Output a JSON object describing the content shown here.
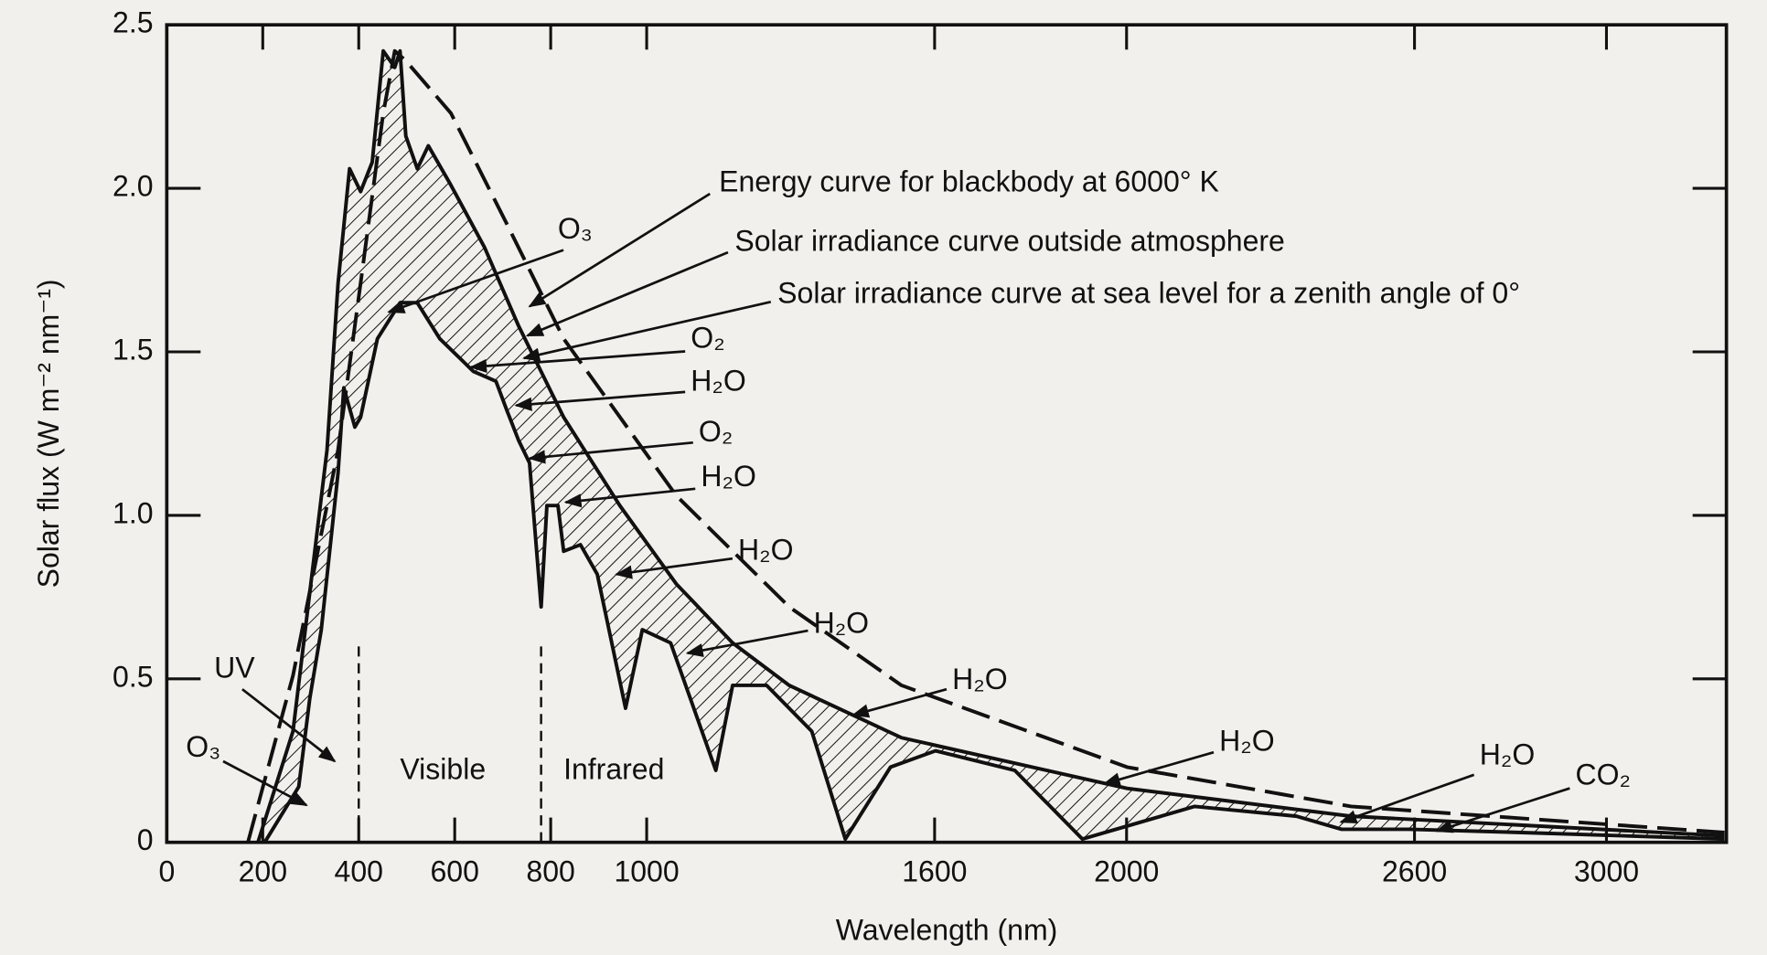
{
  "chart_data": {
    "type": "line",
    "x_label": "Wavelength (nm)",
    "y_label": "Solar flux (W m⁻² nm⁻¹)",
    "xlim": [
      0,
      3250
    ],
    "ylim": [
      0,
      2.5
    ],
    "xticks": [
      0,
      200,
      400,
      600,
      800,
      1000,
      1600,
      2000,
      2600,
      3000
    ],
    "yticks": [
      0,
      0.5,
      {
        "value": 1,
        "label": "1.0"
      },
      1.5,
      {
        "value": 2,
        "label": "2.0"
      },
      2.5
    ],
    "region_bounds": [
      400,
      780
    ],
    "series": [
      {
        "name": "Energy curve for blackbody at 6000° K",
        "color": "#111111",
        "dashed": true,
        "x": [
          169,
          263,
          357,
          404,
          451,
          475,
          498,
          592,
          709,
          827,
          1062,
          1297,
          1531,
          2001,
          2468,
          3246
        ],
        "values": [
          0,
          0.51,
          1.2,
          1.71,
          2.23,
          2.42,
          2.39,
          2.23,
          1.89,
          1.54,
          1.06,
          0.72,
          0.48,
          0.23,
          0.11,
          0.03
        ]
      },
      {
        "name": "Solar irradiance curve outside atmosphere",
        "color": "#111111",
        "dashed": false,
        "x": [
          190,
          263,
          334,
          357,
          381,
          404,
          428,
          451,
          475,
          486,
          498,
          522,
          545,
          592,
          662,
          733,
          827,
          944,
          1062,
          1179,
          1297,
          1531,
          2001,
          2468,
          3246
        ],
        "values": [
          0,
          0.34,
          1.2,
          1.71,
          2.06,
          1.99,
          2.08,
          2.42,
          2.37,
          2.42,
          2.16,
          2.06,
          2.13,
          2.01,
          1.82,
          1.58,
          1.3,
          1.03,
          0.79,
          0.61,
          0.48,
          0.32,
          0.165,
          0.08,
          0.02
        ]
      },
      {
        "name": "Solar irradiance curve at sea level for a zenith angle of 0°",
        "color": "#111111",
        "dashed": false,
        "x": [
          204,
          275,
          298,
          322,
          357,
          369,
          392,
          404,
          439,
          486,
          522,
          569,
          639,
          686,
          709,
          733,
          756,
          780,
          792,
          815,
          827,
          862,
          897,
          956,
          991,
          1050,
          1144,
          1179,
          1250,
          1344,
          1414,
          1508,
          1602,
          1767,
          1908,
          1978,
          2142,
          2354,
          2448,
          2589,
          2824,
          3246
        ],
        "values": [
          0,
          0.17,
          0.44,
          0.65,
          1.13,
          1.39,
          1.27,
          1.3,
          1.54,
          1.65,
          1.65,
          1.54,
          1.44,
          1.41,
          1.32,
          1.23,
          1.16,
          0.72,
          1.03,
          1.03,
          0.89,
          0.91,
          0.82,
          0.41,
          0.65,
          0.61,
          0.22,
          0.48,
          0.48,
          0.34,
          0.01,
          0.23,
          0.28,
          0.22,
          0.01,
          0.04,
          0.11,
          0.08,
          0.04,
          0.04,
          0.03,
          0.01
        ]
      }
    ],
    "annotations": [
      {
        "text": "O₃"
      },
      {
        "text": "O₂"
      },
      {
        "text": "H₂O"
      },
      {
        "text": "O₂"
      },
      {
        "text": "H₂O"
      },
      {
        "text": "H₂O"
      },
      {
        "text": "H₂O"
      },
      {
        "text": "H₂O"
      },
      {
        "text": "H₂O"
      },
      {
        "text": "H₂O"
      },
      {
        "text": "CO₂"
      },
      {
        "text": "UV"
      },
      {
        "text": "O₃"
      },
      {
        "text": "Visible"
      },
      {
        "text": "Infrared"
      }
    ]
  }
}
